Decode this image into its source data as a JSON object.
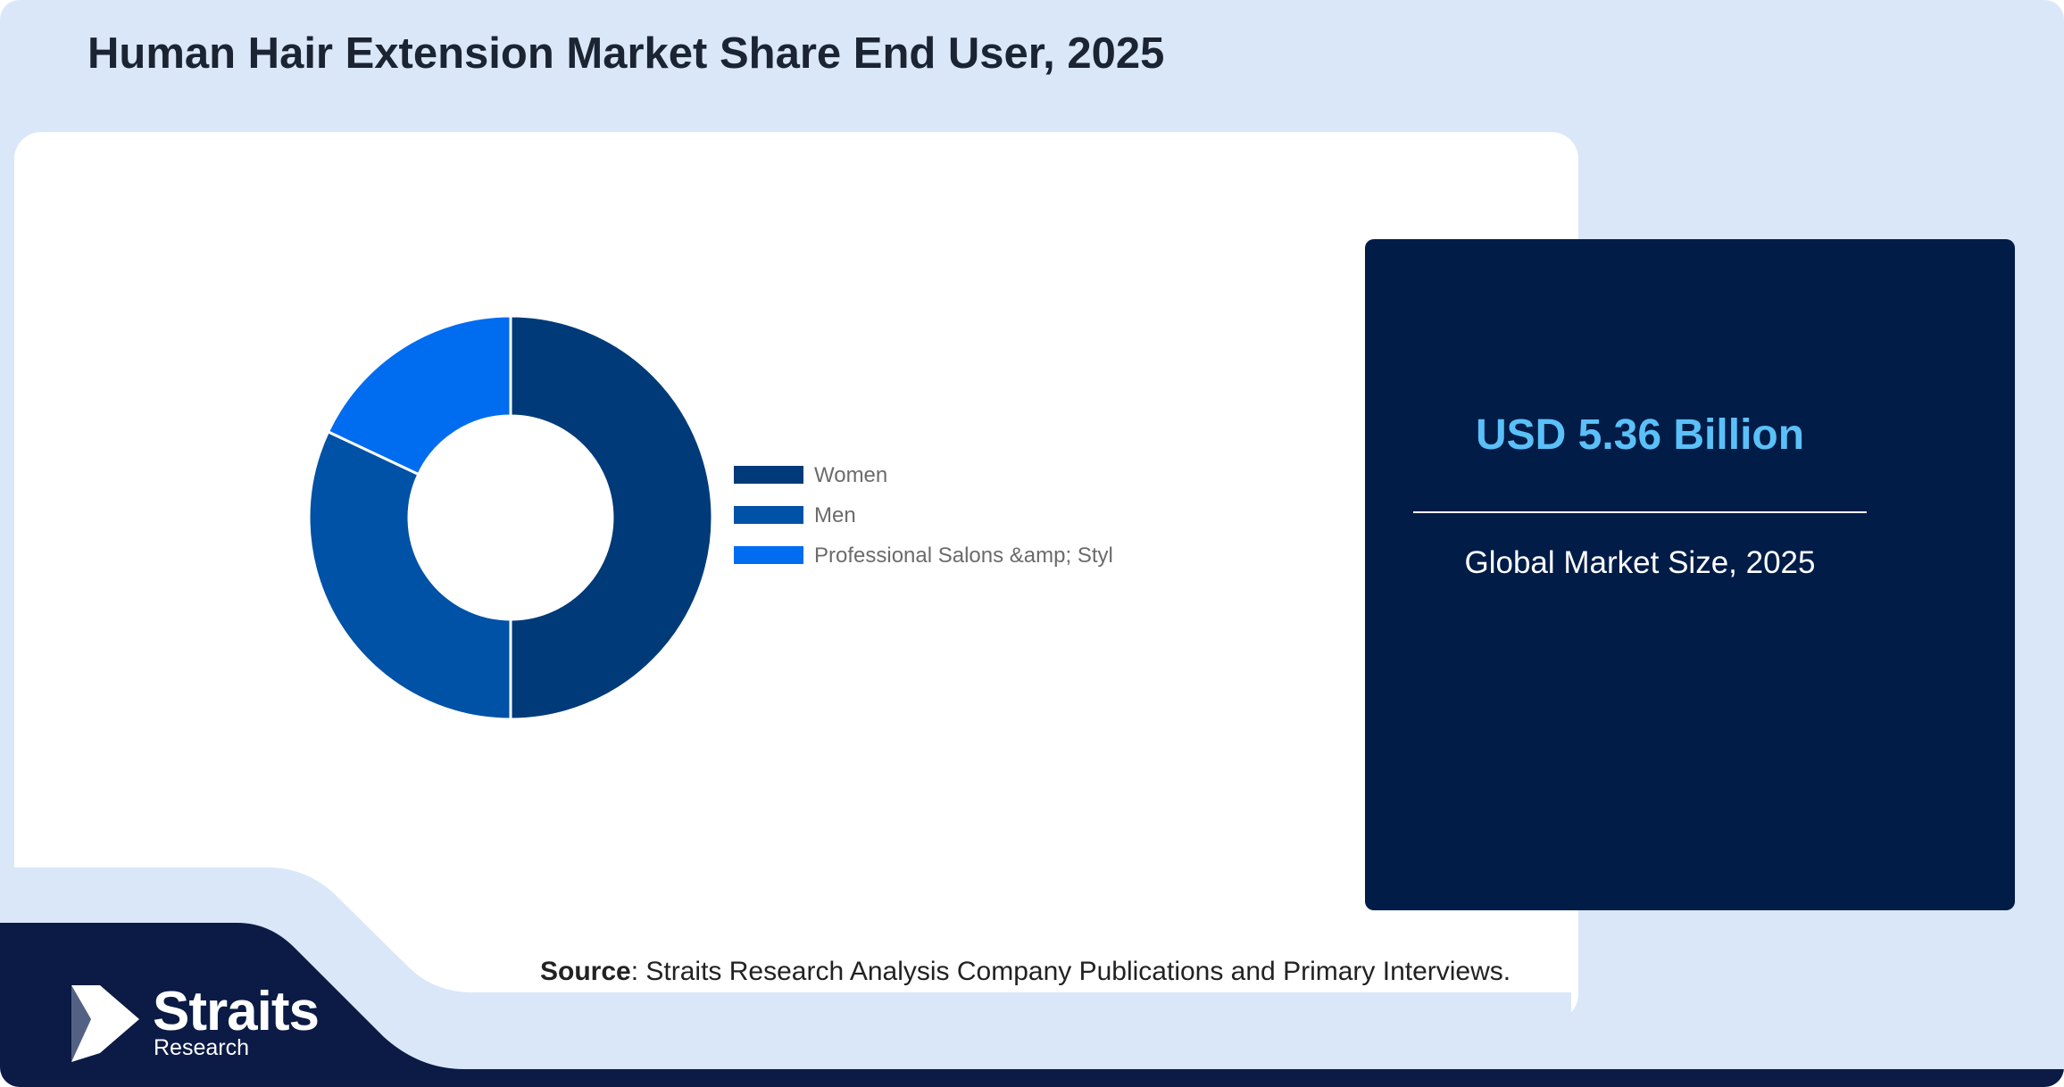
{
  "title": "Human Hair Extension Market Share End User, 2025",
  "chart_data": {
    "type": "pie",
    "donut": true,
    "categories": [
      "Women",
      "Men",
      "Professional Salons &amp; Styl"
    ],
    "values": [
      50,
      32,
      18
    ],
    "colors": [
      "#003a79",
      "#0052a6",
      "#006cf0"
    ],
    "legend_position": "right"
  },
  "market": {
    "value": "USD 5.36 Billion",
    "caption": "Global Market Size, 2025"
  },
  "source": {
    "label": "Source",
    "text": ": Straits Research Analysis Company Publications and Primary Interviews."
  },
  "logo": {
    "name": "Straits",
    "subtitle": "Research",
    "icon": "straits-arrow-icon"
  },
  "colors": {
    "background": "#dae7f9",
    "panel": "#ffffff",
    "info_box": "#001c47",
    "accent": "#5bc0f8",
    "footer": "#0c1b45"
  }
}
